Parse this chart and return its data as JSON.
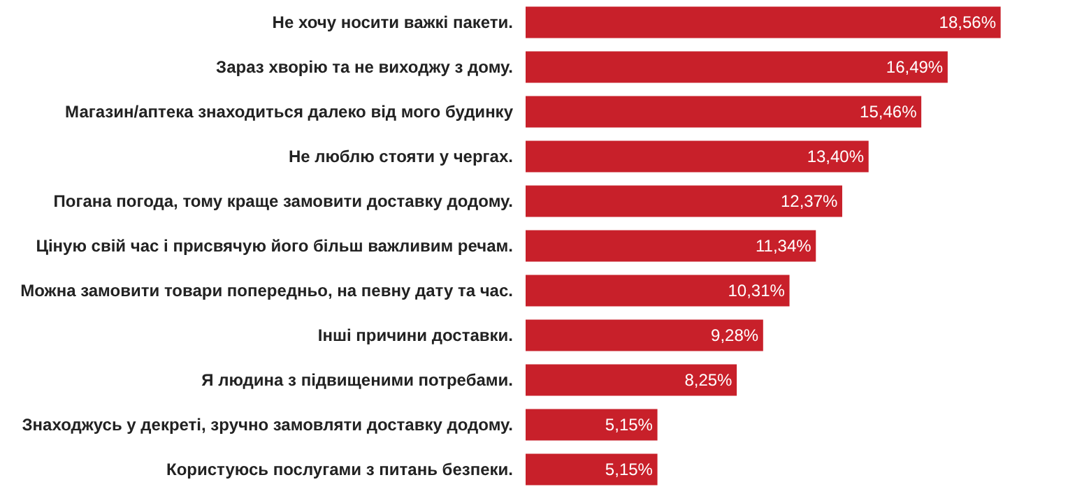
{
  "chart_data": {
    "type": "bar",
    "orientation": "horizontal",
    "categories": [
      "Не хочу носити важкі пакети.",
      "Зараз хворію та не виходжу з дому.",
      "Магазин/аптека знаходиться далеко від мого будинку",
      "Не люблю стояти у чергах.",
      "Погана погода, тому краще замовити доставку додому.",
      "Ціную свій час і присвячую його більш важливим речам.",
      "Можна замовити товари попередньо, на певну дату та час.",
      "Інші причини доставки.",
      "Я людина з підвищеними потребами.",
      "Знаходжусь у декреті, зручно замовляти доставку додому.",
      "Користуюсь послугами з питань безпеки."
    ],
    "values": [
      18.56,
      16.49,
      15.46,
      13.4,
      12.37,
      11.34,
      10.31,
      9.28,
      8.25,
      5.15,
      5.15
    ],
    "value_labels": [
      "18,56%",
      "16,49%",
      "15,46%",
      "13,40%",
      "12,37%",
      "11,34%",
      "10,31%",
      "9,28%",
      "8,25%",
      "5,15%",
      "5,15%"
    ],
    "color": "#c8202a"
  }
}
